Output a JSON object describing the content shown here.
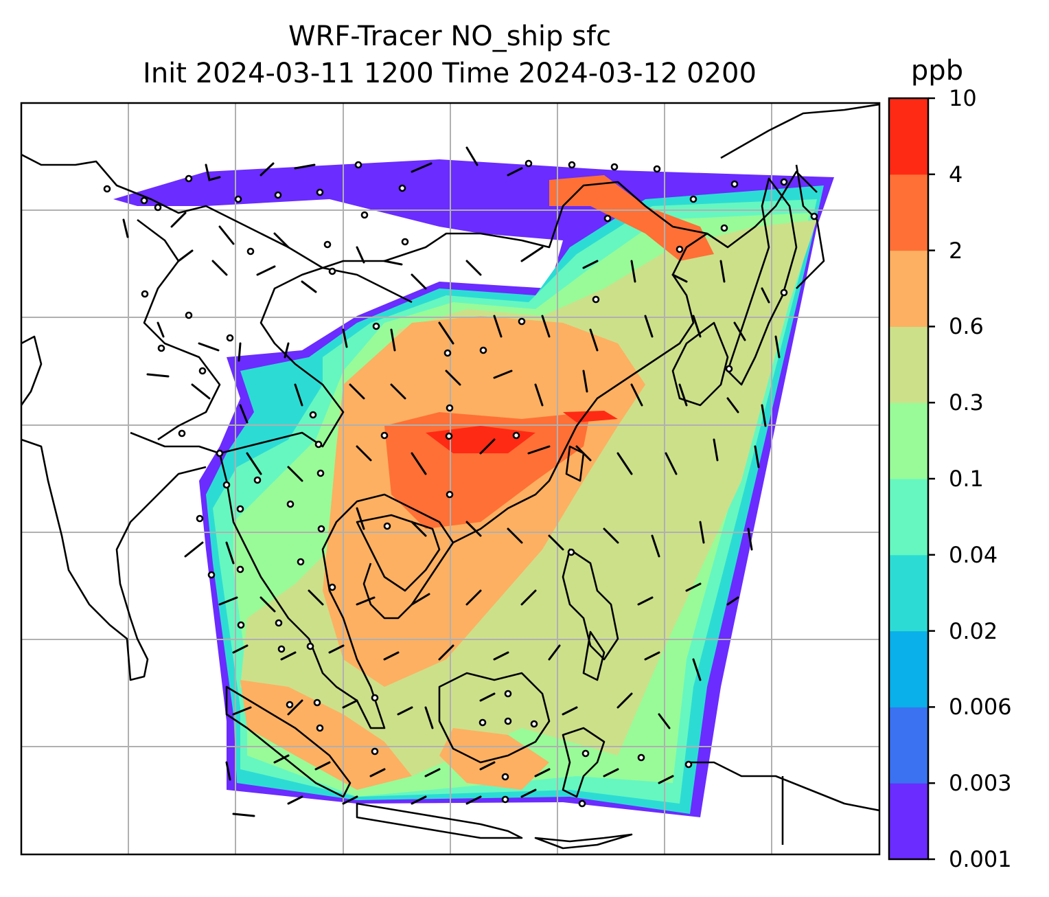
{
  "title_line1": "WRF-Tracer NO_ship sfc",
  "title_line2": "Init 2024-03-11 1200 Time 2024-03-12 0200",
  "colorbar": {
    "unit": "ppb",
    "levels": [
      "0.001",
      "0.003",
      "0.006",
      "0.02",
      "0.04",
      "0.1",
      "0.3",
      "0.6",
      "2",
      "4",
      "10"
    ],
    "colors": [
      "#6a2cff",
      "#3a72f2",
      "#0ab0ea",
      "#2cdcd4",
      "#66f7c0",
      "#98fb98",
      "#cce08a",
      "#fdb061",
      "#ff7036",
      "#ff2a14"
    ]
  },
  "map": {
    "background": "#ffffff",
    "gridline_color": "#b0b0b0",
    "coastline_color": "#000000",
    "overlay": "wind barbs and calm-wind circles"
  }
}
